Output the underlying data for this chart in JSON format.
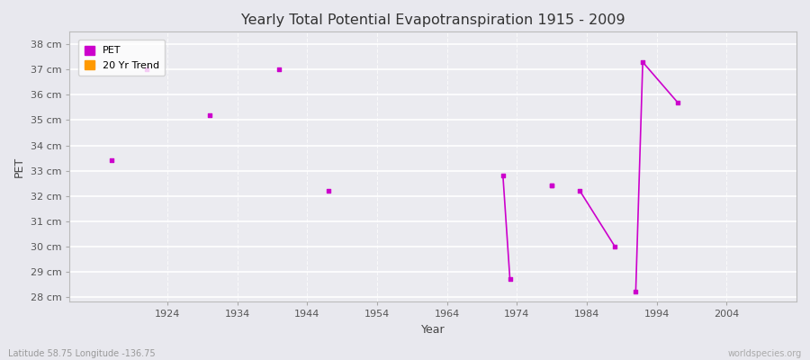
{
  "title": "Yearly Total Potential Evapotranspiration 1915 - 2009",
  "xlabel": "Year",
  "ylabel": "PET",
  "background_color": "#e8e8ee",
  "plot_bg_color": "#ebebf0",
  "grid_color": "#ffffff",
  "ylim": [
    27.8,
    38.5
  ],
  "xlim": [
    1910,
    2014
  ],
  "ytick_labels": [
    "28 cm",
    "29 cm",
    "30 cm",
    "31 cm",
    "32 cm",
    "33 cm",
    "34 cm",
    "35 cm",
    "36 cm",
    "37 cm",
    "38 cm"
  ],
  "ytick_values": [
    28,
    29,
    30,
    31,
    32,
    33,
    34,
    35,
    36,
    37,
    38
  ],
  "xtick_values": [
    1924,
    1934,
    1944,
    1954,
    1964,
    1974,
    1984,
    1994,
    2004
  ],
  "pet_scatter_x": [
    1916,
    1921,
    1930,
    1940,
    1947,
    1979
  ],
  "pet_scatter_y": [
    33.4,
    37.0,
    35.2,
    37.0,
    32.2,
    32.4
  ],
  "trend_lines": [
    {
      "x": [
        1972,
        1973
      ],
      "y": [
        32.8,
        28.7
      ]
    },
    {
      "x": [
        1983,
        1988
      ],
      "y": [
        32.2,
        30.0
      ]
    },
    {
      "x": [
        1991,
        1992,
        1997
      ],
      "y": [
        28.2,
        37.3,
        35.7
      ]
    }
  ],
  "trend_line_dots": [
    [
      1972,
      32.8
    ],
    [
      1973,
      28.7
    ],
    [
      1979,
      32.4
    ],
    [
      1983,
      32.2
    ],
    [
      1988,
      30.0
    ],
    [
      1991,
      28.2
    ],
    [
      1992,
      37.3
    ],
    [
      1997,
      35.7
    ]
  ],
  "pet_color": "#cc00cc",
  "scatter_marker": "s",
  "scatter_size": 12,
  "footer_left": "Latitude 58.75 Longitude -136.75",
  "footer_right": "worldspecies.org",
  "legend_pet_color": "#cc00cc",
  "legend_trend_color": "#ff9900"
}
